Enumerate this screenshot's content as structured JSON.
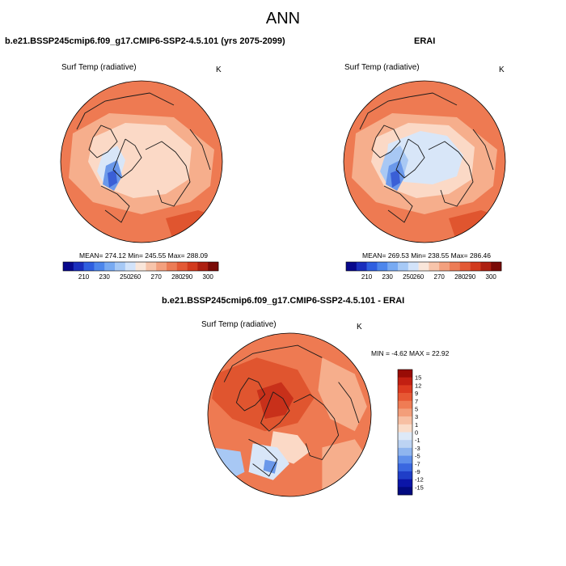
{
  "figure": {
    "title": "ANN"
  },
  "panels": [
    {
      "title": "b.e21.BSSP245cmip6.f09_g17.CMIP6-SSP2-4.5.101 (yrs 2075-2099)",
      "variable": "Surf Temp (radiative)",
      "units": "K",
      "stats": "MEAN= 274.12  Min= 245.55  Max= 288.09"
    },
    {
      "title": "ERAI",
      "variable": "Surf Temp (radiative)",
      "units": "K",
      "stats": "MEAN= 269.53  Min= 238.55  Max= 286.46"
    },
    {
      "title": "b.e21.BSSP245cmip6.f09_g17.CMIP6-SSP2-4.5.101 - ERAI",
      "variable": "Surf Temp (radiative)",
      "units": "K",
      "stats": "MIN =  -4.62 MAX =  22.92"
    }
  ],
  "chart_data": [
    {
      "type": "heatmap",
      "projection": "north polar stereographic",
      "title": "b.e21.BSSP245cmip6.f09_g17.CMIP6-SSP2-4.5.101 (yrs 2075-2099)",
      "variable": "Surf Temp (radiative)",
      "units": "K",
      "mean": 274.12,
      "min": 245.55,
      "max": 288.09,
      "colorbar_ticks": [
        "210",
        "230",
        "250",
        "260",
        "270",
        "280",
        "290",
        "300"
      ],
      "colorbar_colors": [
        "#08088c",
        "#1a2ebd",
        "#2f5fe0",
        "#4d86ec",
        "#78aaf2",
        "#a6c9f6",
        "#d2e3fa",
        "#f9e6da",
        "#f7c4aa",
        "#f3a07e",
        "#ec7c56",
        "#e35935",
        "#d23a1d",
        "#ad1f10",
        "#7a0a06"
      ],
      "colorbar_orientation": "horizontal"
    },
    {
      "type": "heatmap",
      "projection": "north polar stereographic",
      "title": "ERAI",
      "variable": "Surf Temp (radiative)",
      "units": "K",
      "mean": 269.53,
      "min": 238.55,
      "max": 286.46,
      "colorbar_ticks": [
        "210",
        "230",
        "250",
        "260",
        "270",
        "280",
        "290",
        "300"
      ],
      "colorbar_colors": [
        "#08088c",
        "#1a2ebd",
        "#2f5fe0",
        "#4d86ec",
        "#78aaf2",
        "#a6c9f6",
        "#d2e3fa",
        "#f9e6da",
        "#f7c4aa",
        "#f3a07e",
        "#ec7c56",
        "#e35935",
        "#d23a1d",
        "#ad1f10",
        "#7a0a06"
      ],
      "colorbar_orientation": "horizontal"
    },
    {
      "type": "heatmap",
      "projection": "north polar stereographic",
      "title": "b.e21.BSSP245cmip6.f09_g17.CMIP6-SSP2-4.5.101 - ERAI",
      "variable": "Surf Temp (radiative)",
      "units": "K",
      "min": -4.62,
      "max": 22.92,
      "colorbar_ticks": [
        "15",
        "12",
        "9",
        "7",
        "5",
        "3",
        "1",
        "0",
        "-1",
        "-3",
        "-5",
        "-7",
        "-9",
        "-12",
        "-15"
      ],
      "colorbar_colors": [
        "#990c06",
        "#c21f12",
        "#dc3a20",
        "#e75834",
        "#ef7c54",
        "#f39e7a",
        "#f7bfa3",
        "#fadcc9",
        "#dde9f7",
        "#bcd3f3",
        "#8fb5ef",
        "#5f8feb",
        "#3a67e0",
        "#1f3ec8",
        "#0b15a8",
        "#020a80"
      ],
      "colorbar_orientation": "vertical"
    }
  ],
  "palette": {
    "warm_dark": "#e0552f",
    "warm_mid": "#ee7a52",
    "warm_light": "#f6ae8c",
    "warm_pale": "#fbd9c6",
    "cool_pale": "#d8e6f8",
    "cool_light": "#a8c8f4",
    "cool_mid": "#6a98ea",
    "cool_dark": "#3a5fd6",
    "coast": "#1a1a1a"
  }
}
